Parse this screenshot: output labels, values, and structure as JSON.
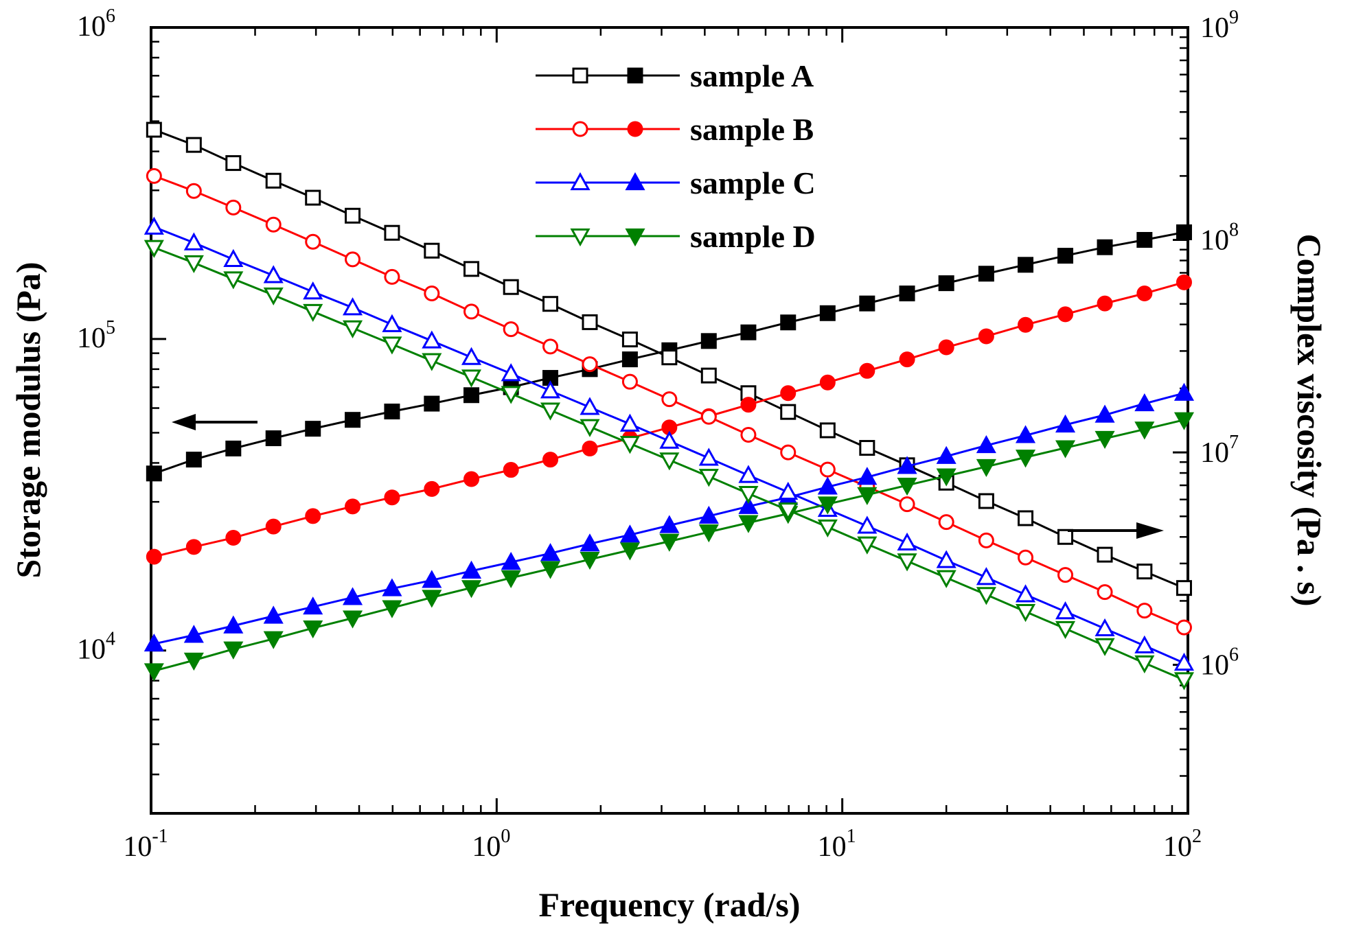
{
  "chart_data": {
    "type": "line",
    "xlabel": "Frequency (rad/s)",
    "ylabel_left": "Storage modulus (Pa)",
    "ylabel_right": "Complex viscosity (Pa . s)",
    "x_scale": "log",
    "y_left_scale": "log",
    "y_right_scale": "log",
    "xlim": [
      0.1,
      100
    ],
    "ylim_left": [
      3000,
      1000000
    ],
    "ylim_right": [
      200000,
      1000000000
    ],
    "x_ticks": [
      {
        "base": "10",
        "exp": "-1"
      },
      {
        "base": "10",
        "exp": "0"
      },
      {
        "base": "10",
        "exp": "1"
      },
      {
        "base": "10",
        "exp": "2"
      }
    ],
    "y_left_ticks": [
      {
        "value": 10000,
        "base": "10",
        "exp": "4"
      },
      {
        "value": 100000,
        "base": "10",
        "exp": "5"
      },
      {
        "value": 1000000,
        "base": "10",
        "exp": "6"
      }
    ],
    "y_right_ticks": [
      {
        "value": 1000000,
        "base": "10",
        "exp": "6"
      },
      {
        "value": 10000000,
        "base": "10",
        "exp": "7"
      },
      {
        "value": 100000000,
        "base": "10",
        "exp": "8"
      },
      {
        "value": 1000000000,
        "base": "10",
        "exp": "9"
      }
    ],
    "x": [
      0.102,
      0.133,
      0.173,
      0.226,
      0.294,
      0.383,
      0.498,
      0.649,
      0.845,
      1.1,
      1.43,
      1.86,
      2.43,
      3.16,
      4.11,
      5.35,
      6.97,
      9.07,
      11.8,
      15.4,
      20.0,
      26.1,
      33.9,
      44.2,
      57.5,
      74.9,
      97.5
    ],
    "series": [
      {
        "name": "sample A",
        "color": "#000000",
        "marker": "square",
        "storage_modulus": [
          37000,
          41000,
          44500,
          48000,
          51500,
          55000,
          58500,
          62000,
          66000,
          70000,
          75000,
          80000,
          86000,
          92000,
          98500,
          105000,
          113000,
          121000,
          130000,
          140000,
          151000,
          162000,
          173000,
          185000,
          197000,
          208000,
          220000
        ],
        "complex_viscosity": [
          330000000,
          280000000,
          230000000,
          190000000,
          158000000,
          130000000,
          108000000,
          89000000,
          73000000,
          60000000,
          50000000,
          41000000,
          34000000,
          28000000,
          23000000,
          19000000,
          15500000,
          12700000,
          10500000,
          8700000,
          7200000,
          5900000,
          4900000,
          4000000,
          3300000,
          2750000,
          2300000
        ]
      },
      {
        "name": "sample B",
        "color": "#ff0000",
        "marker": "circle",
        "storage_modulus": [
          20000,
          21500,
          23000,
          25000,
          27000,
          29000,
          31000,
          33000,
          35500,
          38000,
          41000,
          44500,
          48000,
          52000,
          56500,
          61500,
          67000,
          72500,
          79000,
          86000,
          94000,
          102000,
          111000,
          120000,
          130000,
          140000,
          152000
        ],
        "complex_viscosity": [
          200000000,
          170000000,
          142000000,
          118000000,
          98000000,
          81000000,
          67000000,
          56000000,
          46000000,
          38000000,
          31500000,
          26000000,
          21500000,
          17800000,
          14700000,
          12100000,
          10000000,
          8300000,
          6900000,
          5700000,
          4700000,
          3850000,
          3200000,
          2650000,
          2200000,
          1800000,
          1500000
        ]
      },
      {
        "name": "sample C",
        "color": "#0000ff",
        "marker": "triangle-up",
        "storage_modulus": [
          10500,
          11200,
          12000,
          12900,
          13800,
          14800,
          15800,
          16800,
          18000,
          19200,
          20500,
          22000,
          23500,
          25200,
          27000,
          29000,
          31000,
          33500,
          36000,
          39000,
          42000,
          45500,
          49000,
          53000,
          57000,
          62000,
          67000
        ],
        "complex_viscosity": [
          115000000,
          97000000,
          81000000,
          68000000,
          57000000,
          48000000,
          40000000,
          33500000,
          28000000,
          23500000,
          19500000,
          16300000,
          13600000,
          11300000,
          9400000,
          7800000,
          6500000,
          5400000,
          4500000,
          3750000,
          3100000,
          2580000,
          2140000,
          1780000,
          1480000,
          1230000,
          1020000
        ]
      },
      {
        "name": "sample D",
        "color": "#008000",
        "marker": "triangle-down",
        "storage_modulus": [
          8600,
          9300,
          10100,
          10900,
          11800,
          12700,
          13700,
          14800,
          15900,
          17100,
          18300,
          19600,
          21000,
          22400,
          24000,
          25700,
          27500,
          29500,
          31600,
          33900,
          36300,
          38900,
          41700,
          44700,
          47900,
          51300,
          55000
        ],
        "complex_viscosity": [
          92000000,
          78000000,
          65500000,
          55000000,
          46000000,
          38500000,
          32300000,
          27000000,
          22600000,
          18900000,
          15800000,
          13200000,
          11000000,
          9200000,
          7700000,
          6400000,
          5350000,
          4450000,
          3700000,
          3080000,
          2570000,
          2140000,
          1780000,
          1480000,
          1230000,
          1020000,
          850000
        ]
      }
    ],
    "annotations": [
      {
        "text": "arrow pointing left",
        "target_axis": "left (storage modulus)"
      },
      {
        "text": "arrow pointing right",
        "target_axis": "right (complex viscosity)"
      }
    ],
    "legend_position": "top-center",
    "grid": false
  }
}
